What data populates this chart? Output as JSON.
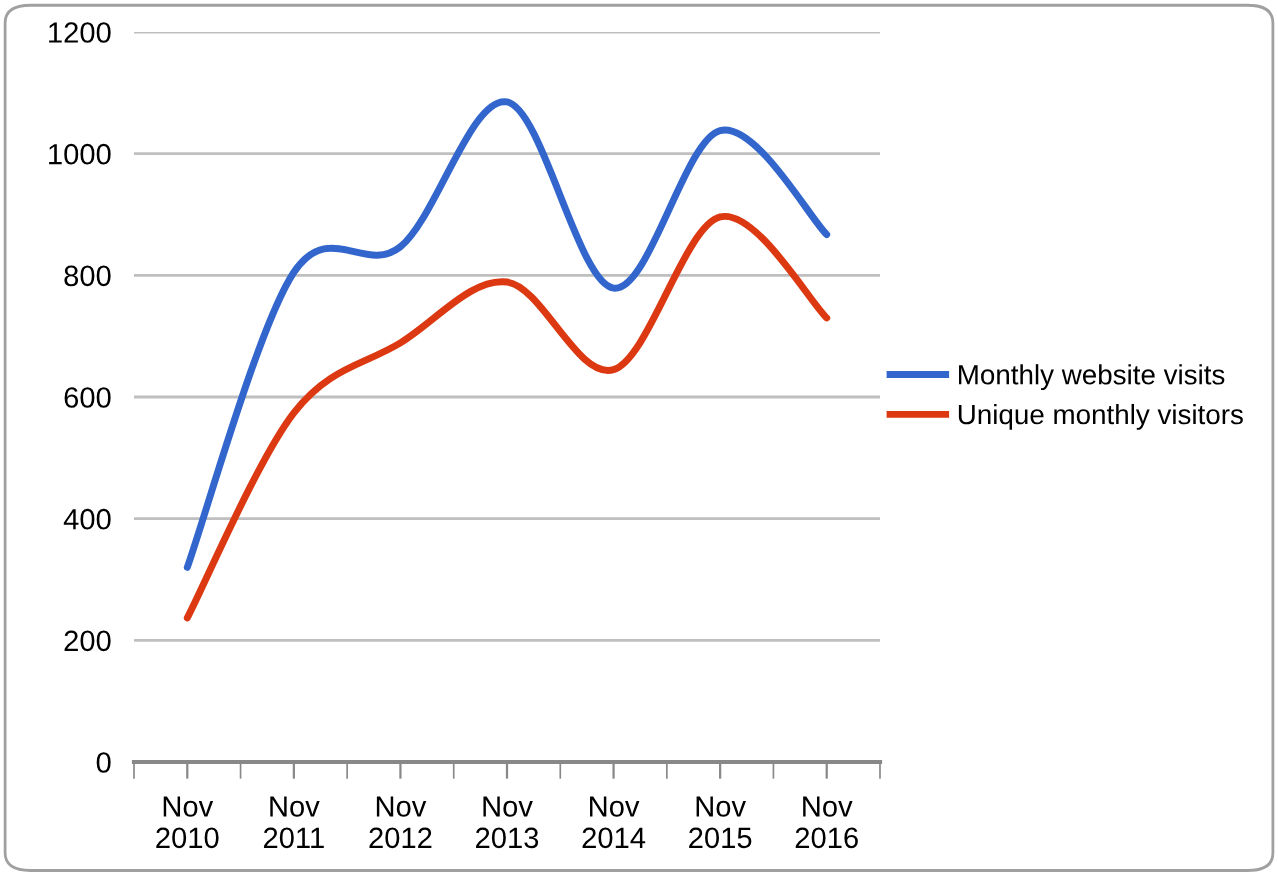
{
  "chart_data": {
    "type": "line",
    "categories": [
      "Nov\n2010",
      "Nov\n2011",
      "Nov\n2012",
      "Nov\n2013",
      "Nov\n2014",
      "Nov\n2015",
      "Nov\n2016"
    ],
    "series": [
      {
        "name": "Monthly website visits",
        "color": "#3366cc",
        "values": [
          320,
          805,
          847,
          1085,
          779,
          1038,
          867
        ]
      },
      {
        "name": "Unique monthly visitors",
        "color": "#dc3912",
        "values": [
          237,
          574,
          689,
          789,
          645,
          896,
          730
        ]
      }
    ],
    "ylim": [
      0,
      1200
    ],
    "yticks": [
      0,
      200,
      400,
      600,
      800,
      1000,
      1200
    ],
    "grid": "y",
    "legend": "right",
    "marker": "none",
    "line_style": "solid"
  }
}
